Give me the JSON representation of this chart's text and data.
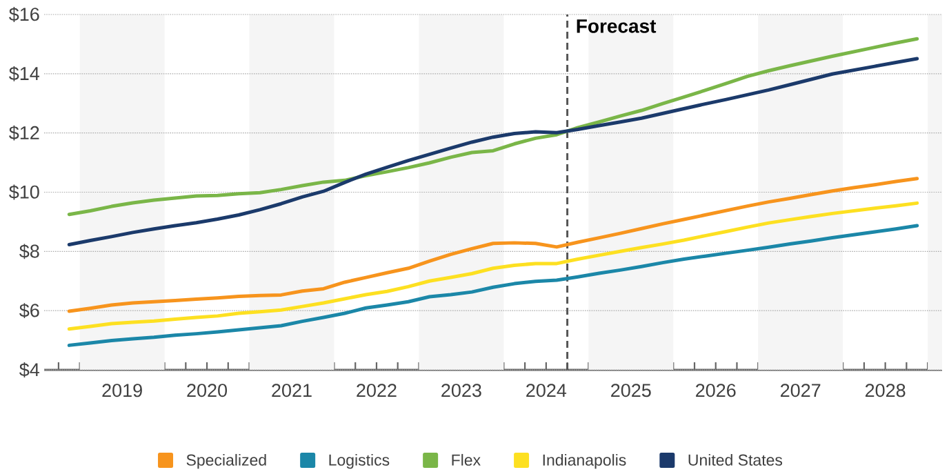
{
  "chart_data": {
    "type": "line",
    "x": [
      2018.875,
      2019.125,
      2019.375,
      2019.625,
      2019.875,
      2020.125,
      2020.375,
      2020.625,
      2020.875,
      2021.125,
      2021.375,
      2021.625,
      2021.875,
      2022.125,
      2022.375,
      2022.625,
      2022.875,
      2023.125,
      2023.375,
      2023.625,
      2023.875,
      2024.125,
      2024.375,
      2024.625,
      2024.875,
      2025.125,
      2025.375,
      2025.625,
      2025.875,
      2026.125,
      2026.375,
      2026.625,
      2026.875,
      2027.125,
      2027.375,
      2027.625,
      2027.875,
      2028.125,
      2028.375,
      2028.625,
      2028.875
    ],
    "series": [
      {
        "name": "Specialized",
        "color": "#f7941d",
        "values": [
          5.98,
          6.08,
          6.19,
          6.26,
          6.3,
          6.34,
          6.39,
          6.43,
          6.48,
          6.51,
          6.53,
          6.66,
          6.74,
          6.96,
          7.12,
          7.28,
          7.43,
          7.67,
          7.9,
          8.09,
          8.27,
          8.29,
          8.27,
          8.15,
          8.31,
          8.46,
          8.61,
          8.77,
          8.93,
          9.08,
          9.23,
          9.38,
          9.53,
          9.67,
          9.79,
          9.92,
          10.04,
          10.15,
          10.25,
          10.36,
          10.46
        ]
      },
      {
        "name": "Logistics",
        "color": "#1b87a8",
        "values": [
          4.83,
          4.91,
          4.99,
          5.05,
          5.1,
          5.17,
          5.22,
          5.28,
          5.35,
          5.42,
          5.49,
          5.64,
          5.77,
          5.91,
          6.09,
          6.19,
          6.3,
          6.47,
          6.54,
          6.63,
          6.79,
          6.91,
          6.99,
          7.03,
          7.14,
          7.26,
          7.37,
          7.49,
          7.62,
          7.74,
          7.84,
          7.94,
          8.04,
          8.14,
          8.25,
          8.35,
          8.46,
          8.56,
          8.66,
          8.76,
          8.87
        ]
      },
      {
        "name": "Flex",
        "color": "#7ab648",
        "values": [
          9.25,
          9.37,
          9.52,
          9.64,
          9.73,
          9.8,
          9.87,
          9.89,
          9.95,
          9.98,
          10.09,
          10.22,
          10.34,
          10.4,
          10.56,
          10.69,
          10.83,
          10.99,
          11.18,
          11.34,
          11.4,
          11.63,
          11.82,
          11.94,
          12.18,
          12.37,
          12.57,
          12.76,
          12.99,
          13.21,
          13.44,
          13.67,
          13.91,
          14.1,
          14.27,
          14.43,
          14.59,
          14.74,
          14.89,
          15.04,
          15.18
        ]
      },
      {
        "name": "Indianapolis",
        "color": "#fde021",
        "values": [
          5.38,
          5.47,
          5.56,
          5.61,
          5.65,
          5.71,
          5.77,
          5.82,
          5.91,
          5.96,
          6.02,
          6.14,
          6.26,
          6.4,
          6.54,
          6.65,
          6.81,
          7.0,
          7.12,
          7.25,
          7.43,
          7.53,
          7.59,
          7.59,
          7.74,
          7.87,
          8.0,
          8.13,
          8.25,
          8.38,
          8.53,
          8.67,
          8.82,
          8.96,
          9.07,
          9.18,
          9.28,
          9.37,
          9.46,
          9.54,
          9.63
        ]
      },
      {
        "name": "United States",
        "color": "#1b3a6b",
        "values": [
          8.23,
          8.37,
          8.5,
          8.64,
          8.76,
          8.87,
          8.97,
          9.09,
          9.23,
          9.41,
          9.61,
          9.84,
          10.03,
          10.33,
          10.61,
          10.84,
          11.07,
          11.28,
          11.49,
          11.69,
          11.86,
          11.98,
          12.04,
          12.01,
          12.12,
          12.25,
          12.37,
          12.5,
          12.66,
          12.82,
          12.98,
          13.13,
          13.29,
          13.45,
          13.63,
          13.81,
          13.99,
          14.12,
          14.25,
          14.38,
          14.51
        ]
      }
    ],
    "xlim": [
      2018.58,
      2029.17
    ],
    "xticks": [
      {
        "value": 2018.75,
        "label": null
      },
      {
        "value": 2019,
        "label": null
      },
      {
        "value": 2019.25,
        "label": null
      },
      {
        "value": 2019.5,
        "label": "2019"
      },
      {
        "value": 2019.75,
        "label": null
      },
      {
        "value": 2020,
        "label": null
      },
      {
        "value": 2020.25,
        "label": null
      },
      {
        "value": 2020.5,
        "label": "2020"
      },
      {
        "value": 2020.75,
        "label": null
      },
      {
        "value": 2021,
        "label": null
      },
      {
        "value": 2021.25,
        "label": null
      },
      {
        "value": 2021.5,
        "label": "2021"
      },
      {
        "value": 2021.75,
        "label": null
      },
      {
        "value": 2022,
        "label": null
      },
      {
        "value": 2022.25,
        "label": null
      },
      {
        "value": 2022.5,
        "label": "2022"
      },
      {
        "value": 2022.75,
        "label": null
      },
      {
        "value": 2023,
        "label": null
      },
      {
        "value": 2023.25,
        "label": null
      },
      {
        "value": 2023.5,
        "label": "2023"
      },
      {
        "value": 2023.75,
        "label": null
      },
      {
        "value": 2024,
        "label": null
      },
      {
        "value": 2024.25,
        "label": null
      },
      {
        "value": 2024.5,
        "label": "2024"
      },
      {
        "value": 2024.75,
        "label": null
      },
      {
        "value": 2025,
        "label": null
      },
      {
        "value": 2025.25,
        "label": null
      },
      {
        "value": 2025.5,
        "label": "2025"
      },
      {
        "value": 2025.75,
        "label": null
      },
      {
        "value": 2026,
        "label": null
      },
      {
        "value": 2026.25,
        "label": null
      },
      {
        "value": 2026.5,
        "label": "2026"
      },
      {
        "value": 2026.75,
        "label": null
      },
      {
        "value": 2027,
        "label": null
      },
      {
        "value": 2027.25,
        "label": null
      },
      {
        "value": 2027.5,
        "label": "2027"
      },
      {
        "value": 2027.75,
        "label": null
      },
      {
        "value": 2028,
        "label": null
      },
      {
        "value": 2028.25,
        "label": null
      },
      {
        "value": 2028.5,
        "label": "2028"
      },
      {
        "value": 2028.75,
        "label": null
      },
      {
        "value": 2029,
        "label": null
      }
    ],
    "ylim": [
      4,
      16
    ],
    "yticks": [
      {
        "value": 4,
        "label": "$4"
      },
      {
        "value": 6,
        "label": "$6"
      },
      {
        "value": 8,
        "label": "$8"
      },
      {
        "value": 10,
        "label": "$10"
      },
      {
        "value": 12,
        "label": "$12"
      },
      {
        "value": 14,
        "label": "$14"
      },
      {
        "value": 16,
        "label": "$16"
      }
    ],
    "grid": "y",
    "legend": "bottom",
    "ref_lines": [
      {
        "axis": "x",
        "value": 2024.75,
        "label": "Forecast",
        "color": "#555555",
        "line_style": "dashed"
      }
    ],
    "bands": [
      {
        "axis": "x",
        "from": 2019,
        "to": 2020,
        "color": "#f5f5f5"
      },
      {
        "axis": "x",
        "from": 2021,
        "to": 2022,
        "color": "#f5f5f5"
      },
      {
        "axis": "x",
        "from": 2023,
        "to": 2024,
        "color": "#f5f5f5"
      },
      {
        "axis": "x",
        "from": 2025,
        "to": 2026,
        "color": "#f5f5f5"
      },
      {
        "axis": "x",
        "from": 2027,
        "to": 2028,
        "color": "#f5f5f5"
      },
      {
        "axis": "x",
        "from": 2029,
        "to": 2029.17,
        "color": "#f5f5f5"
      }
    ]
  }
}
